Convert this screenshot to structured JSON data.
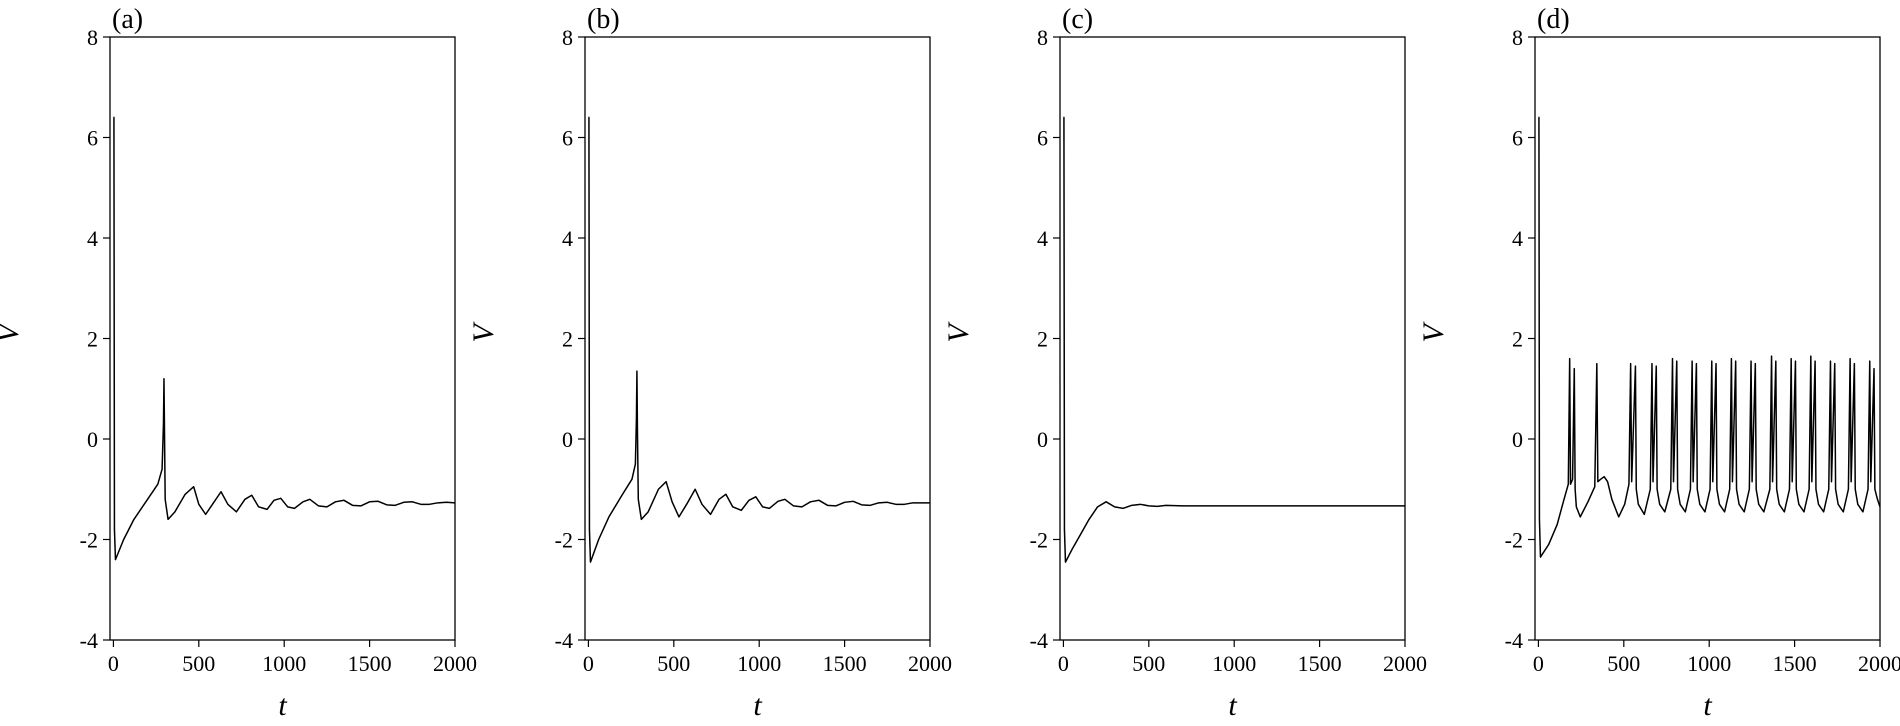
{
  "chart_data": [
    {
      "type": "line",
      "panel_label": "(a)",
      "xlabel": "t",
      "ylabel": "V",
      "xlim": [
        -20,
        2000
      ],
      "ylim": [
        -4,
        8
      ],
      "xticks": [
        0,
        500,
        1000,
        1500,
        2000
      ],
      "yticks": [
        -4,
        -2,
        0,
        2,
        4,
        6,
        8
      ],
      "grid": false,
      "series": [
        {
          "behavior": "initial spike, second spike near t=300, damped oscillation to steady state",
          "points": [
            [
              0,
              6.4
            ],
            [
              3,
              6.4
            ],
            [
              6,
              -1.8
            ],
            [
              12,
              -2.4
            ],
            [
              60,
              -2.0
            ],
            [
              120,
              -1.6
            ],
            [
              200,
              -1.2
            ],
            [
              260,
              -0.9
            ],
            [
              285,
              -0.6
            ],
            [
              293,
              0.3
            ],
            [
              296,
              1.2
            ],
            [
              299,
              0.2
            ],
            [
              303,
              -1.2
            ],
            [
              320,
              -1.6
            ],
            [
              360,
              -1.45
            ],
            [
              420,
              -1.1
            ],
            [
              470,
              -0.95
            ],
            [
              500,
              -1.3
            ],
            [
              540,
              -1.5
            ],
            [
              580,
              -1.3
            ],
            [
              630,
              -1.05
            ],
            [
              670,
              -1.3
            ],
            [
              720,
              -1.45
            ],
            [
              770,
              -1.2
            ],
            [
              810,
              -1.12
            ],
            [
              850,
              -1.35
            ],
            [
              900,
              -1.4
            ],
            [
              940,
              -1.22
            ],
            [
              980,
              -1.18
            ],
            [
              1020,
              -1.35
            ],
            [
              1060,
              -1.38
            ],
            [
              1110,
              -1.25
            ],
            [
              1150,
              -1.2
            ],
            [
              1200,
              -1.33
            ],
            [
              1250,
              -1.35
            ],
            [
              1300,
              -1.25
            ],
            [
              1350,
              -1.22
            ],
            [
              1400,
              -1.32
            ],
            [
              1450,
              -1.33
            ],
            [
              1500,
              -1.25
            ],
            [
              1550,
              -1.24
            ],
            [
              1600,
              -1.31
            ],
            [
              1650,
              -1.32
            ],
            [
              1700,
              -1.26
            ],
            [
              1750,
              -1.25
            ],
            [
              1800,
              -1.3
            ],
            [
              1850,
              -1.3
            ],
            [
              1900,
              -1.27
            ],
            [
              1950,
              -1.26
            ],
            [
              2000,
              -1.27
            ]
          ]
        }
      ]
    },
    {
      "type": "line",
      "panel_label": "(b)",
      "xlabel": "t",
      "ylabel": "V",
      "xlim": [
        -20,
        2000
      ],
      "ylim": [
        -4,
        8
      ],
      "xticks": [
        0,
        500,
        1000,
        1500,
        2000
      ],
      "yticks": [
        -4,
        -2,
        0,
        2,
        4,
        6,
        8
      ],
      "grid": false,
      "series": [
        {
          "behavior": "initial spike, second spike near t=285, damped oscillation to steady state",
          "points": [
            [
              0,
              6.4
            ],
            [
              3,
              6.4
            ],
            [
              6,
              -1.8
            ],
            [
              12,
              -2.45
            ],
            [
              60,
              -2.0
            ],
            [
              120,
              -1.55
            ],
            [
              200,
              -1.1
            ],
            [
              255,
              -0.8
            ],
            [
              275,
              -0.5
            ],
            [
              281,
              0.4
            ],
            [
              284,
              1.35
            ],
            [
              287,
              0.2
            ],
            [
              292,
              -1.2
            ],
            [
              310,
              -1.6
            ],
            [
              350,
              -1.45
            ],
            [
              410,
              -1.0
            ],
            [
              455,
              -0.85
            ],
            [
              490,
              -1.25
            ],
            [
              530,
              -1.55
            ],
            [
              575,
              -1.3
            ],
            [
              625,
              -1.0
            ],
            [
              665,
              -1.3
            ],
            [
              715,
              -1.5
            ],
            [
              765,
              -1.2
            ],
            [
              805,
              -1.1
            ],
            [
              845,
              -1.35
            ],
            [
              895,
              -1.42
            ],
            [
              940,
              -1.22
            ],
            [
              980,
              -1.15
            ],
            [
              1020,
              -1.35
            ],
            [
              1060,
              -1.38
            ],
            [
              1110,
              -1.24
            ],
            [
              1150,
              -1.2
            ],
            [
              1200,
              -1.33
            ],
            [
              1250,
              -1.35
            ],
            [
              1300,
              -1.25
            ],
            [
              1350,
              -1.22
            ],
            [
              1400,
              -1.32
            ],
            [
              1450,
              -1.33
            ],
            [
              1500,
              -1.26
            ],
            [
              1550,
              -1.24
            ],
            [
              1600,
              -1.31
            ],
            [
              1650,
              -1.32
            ],
            [
              1700,
              -1.27
            ],
            [
              1750,
              -1.26
            ],
            [
              1800,
              -1.3
            ],
            [
              1850,
              -1.3
            ],
            [
              1900,
              -1.27
            ],
            [
              1950,
              -1.27
            ],
            [
              2000,
              -1.27
            ]
          ]
        }
      ]
    },
    {
      "type": "line",
      "panel_label": "(c)",
      "xlabel": "t",
      "ylabel": "V",
      "xlim": [
        -20,
        2000
      ],
      "ylim": [
        -4,
        8
      ],
      "xticks": [
        0,
        500,
        1000,
        1500,
        2000
      ],
      "yticks": [
        -4,
        -2,
        0,
        2,
        4,
        6,
        8
      ],
      "grid": false,
      "series": [
        {
          "behavior": "initial spike then quick relaxation to a constant level",
          "points": [
            [
              0,
              6.4
            ],
            [
              3,
              6.4
            ],
            [
              6,
              -1.8
            ],
            [
              12,
              -2.45
            ],
            [
              50,
              -2.2
            ],
            [
              100,
              -1.9
            ],
            [
              150,
              -1.6
            ],
            [
              200,
              -1.35
            ],
            [
              250,
              -1.25
            ],
            [
              300,
              -1.35
            ],
            [
              350,
              -1.38
            ],
            [
              400,
              -1.32
            ],
            [
              450,
              -1.3
            ],
            [
              500,
              -1.33
            ],
            [
              550,
              -1.34
            ],
            [
              600,
              -1.32
            ],
            [
              700,
              -1.33
            ],
            [
              800,
              -1.33
            ],
            [
              1000,
              -1.33
            ],
            [
              1200,
              -1.33
            ],
            [
              1400,
              -1.33
            ],
            [
              1600,
              -1.33
            ],
            [
              1800,
              -1.33
            ],
            [
              2000,
              -1.33
            ]
          ]
        }
      ]
    },
    {
      "type": "line",
      "panel_label": "(d)",
      "xlabel": "t",
      "ylabel": "V",
      "xlim": [
        -20,
        2000
      ],
      "ylim": [
        -4,
        8
      ],
      "xticks": [
        0,
        500,
        1000,
        1500,
        2000
      ],
      "yticks": [
        -4,
        -2,
        0,
        2,
        4,
        6,
        8
      ],
      "grid": false,
      "series": [
        {
          "behavior": "initial spike, then sustained periodic bursting (spike doublets) around V≈-1",
          "points": [
            [
              0,
              6.4
            ],
            [
              3,
              6.4
            ],
            [
              6,
              -1.6
            ],
            [
              12,
              -2.35
            ],
            [
              60,
              -2.1
            ],
            [
              110,
              -1.7
            ],
            [
              150,
              -1.2
            ],
            [
              175,
              -0.9
            ],
            [
              183,
              1.6
            ],
            [
              188,
              -0.9
            ],
            [
              200,
              -0.8
            ],
            [
              210,
              1.4
            ],
            [
              215,
              -1.0
            ],
            [
              222,
              -1.35
            ],
            [
              245,
              -1.55
            ],
            [
              290,
              -1.25
            ],
            [
              330,
              -0.95
            ],
            [
              342,
              1.5
            ],
            [
              348,
              -0.85
            ],
            [
              365,
              -0.8
            ],
            [
              385,
              -0.75
            ],
            [
              405,
              -0.85
            ],
            [
              430,
              -1.2
            ],
            [
              470,
              -1.55
            ],
            [
              505,
              -1.3
            ],
            [
              530,
              -0.9
            ],
            [
              540,
              1.5
            ],
            [
              546,
              -0.85
            ],
            [
              568,
              1.45
            ],
            [
              573,
              -1.0
            ],
            [
              585,
              -1.3
            ],
            [
              620,
              -1.5
            ],
            [
              655,
              -1.0
            ],
            [
              665,
              1.5
            ],
            [
              671,
              -0.85
            ],
            [
              690,
              1.45
            ],
            [
              695,
              -1.0
            ],
            [
              710,
              -1.3
            ],
            [
              740,
              -1.45
            ],
            [
              775,
              -1.0
            ],
            [
              785,
              1.6
            ],
            [
              791,
              -0.85
            ],
            [
              810,
              1.55
            ],
            [
              815,
              -1.0
            ],
            [
              830,
              -1.3
            ],
            [
              860,
              -1.45
            ],
            [
              890,
              -1.0
            ],
            [
              900,
              1.55
            ],
            [
              906,
              -0.85
            ],
            [
              925,
              1.5
            ],
            [
              930,
              -1.0
            ],
            [
              945,
              -1.3
            ],
            [
              975,
              -1.45
            ],
            [
              1005,
              -1.0
            ],
            [
              1015,
              1.55
            ],
            [
              1021,
              -0.85
            ],
            [
              1040,
              1.5
            ],
            [
              1045,
              -1.0
            ],
            [
              1060,
              -1.3
            ],
            [
              1090,
              -1.45
            ],
            [
              1120,
              -1.0
            ],
            [
              1130,
              1.6
            ],
            [
              1136,
              -0.85
            ],
            [
              1155,
              1.55
            ],
            [
              1160,
              -1.0
            ],
            [
              1175,
              -1.3
            ],
            [
              1205,
              -1.45
            ],
            [
              1235,
              -1.0
            ],
            [
              1245,
              1.55
            ],
            [
              1251,
              -0.85
            ],
            [
              1270,
              1.5
            ],
            [
              1275,
              -1.0
            ],
            [
              1290,
              -1.3
            ],
            [
              1320,
              -1.45
            ],
            [
              1355,
              -1.0
            ],
            [
              1365,
              1.65
            ],
            [
              1371,
              -0.85
            ],
            [
              1390,
              1.55
            ],
            [
              1395,
              -1.0
            ],
            [
              1410,
              -1.3
            ],
            [
              1440,
              -1.45
            ],
            [
              1470,
              -1.0
            ],
            [
              1480,
              1.6
            ],
            [
              1486,
              -0.85
            ],
            [
              1505,
              1.55
            ],
            [
              1510,
              -1.0
            ],
            [
              1525,
              -1.3
            ],
            [
              1555,
              -1.45
            ],
            [
              1585,
              -1.0
            ],
            [
              1595,
              1.65
            ],
            [
              1601,
              -0.85
            ],
            [
              1620,
              1.55
            ],
            [
              1625,
              -1.0
            ],
            [
              1640,
              -1.3
            ],
            [
              1670,
              -1.45
            ],
            [
              1700,
              -1.0
            ],
            [
              1710,
              1.55
            ],
            [
              1716,
              -0.85
            ],
            [
              1735,
              1.5
            ],
            [
              1740,
              -1.0
            ],
            [
              1755,
              -1.3
            ],
            [
              1785,
              -1.45
            ],
            [
              1815,
              -1.0
            ],
            [
              1825,
              1.6
            ],
            [
              1831,
              -0.85
            ],
            [
              1850,
              1.5
            ],
            [
              1855,
              -1.0
            ],
            [
              1870,
              -1.3
            ],
            [
              1900,
              -1.45
            ],
            [
              1930,
              -1.0
            ],
            [
              1940,
              1.55
            ],
            [
              1946,
              -0.85
            ],
            [
              1965,
              1.4
            ],
            [
              1970,
              -1.0
            ],
            [
              1985,
              -1.2
            ],
            [
              2000,
              -1.35
            ]
          ]
        }
      ]
    }
  ]
}
